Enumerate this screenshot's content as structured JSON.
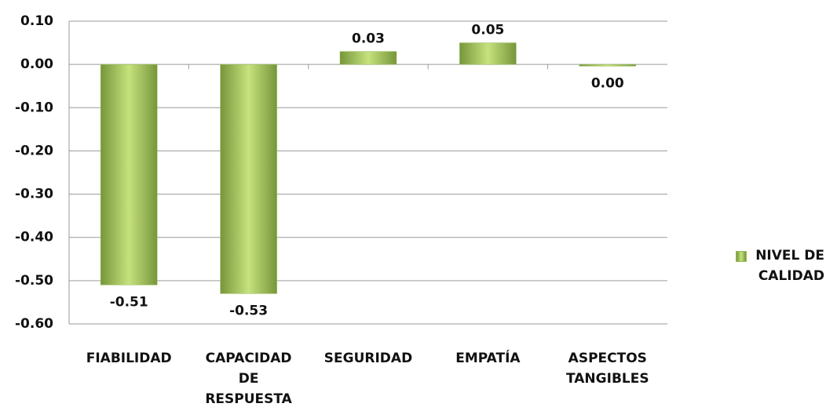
{
  "chart_data": {
    "type": "bar",
    "categories": [
      "FIABILIDAD",
      "CAPACIDAD DE RESPUESTA",
      "SEGURIDAD",
      "EMPATÍA",
      "ASPECTOS TANGIBLES"
    ],
    "series": [
      {
        "name": "NIVEL DE CALIDAD",
        "color": "#9bbb59",
        "values": [
          -0.51,
          -0.53,
          0.03,
          0.05,
          -0.004
        ],
        "value_labels": [
          "-0.51",
          "-0.53",
          "0.03",
          "0.05",
          "0.00"
        ]
      }
    ],
    "ylim": [
      -0.6,
      0.1
    ],
    "yticks": [
      {
        "value": -0.6,
        "label": "-0.60"
      },
      {
        "value": -0.5,
        "label": "-0.50"
      },
      {
        "value": -0.4,
        "label": "-0.40"
      },
      {
        "value": -0.3,
        "label": "-0.30"
      },
      {
        "value": -0.2,
        "label": "-0.20"
      },
      {
        "value": -0.1,
        "label": "-0.10"
      },
      {
        "value": 0,
        "label": "0.00"
      },
      {
        "value": 0.1,
        "label": "0.10"
      }
    ],
    "grid": true,
    "legend": "right"
  }
}
